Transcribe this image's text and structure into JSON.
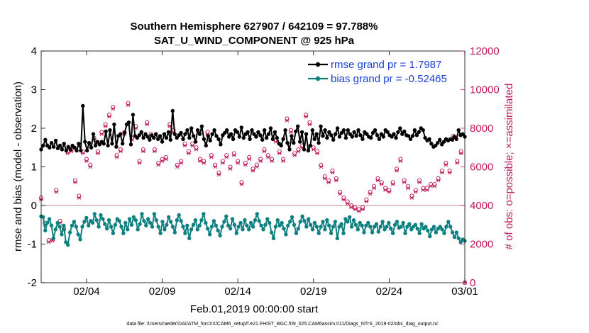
{
  "chart_data": {
    "type": "line",
    "title": "Southern Hemisphere 627907 / 642109 = 97.788%",
    "subtitle": "SAT_U_WIND_COMPONENT @ 925 hPa",
    "xlabel": "Feb.01,2019 00:00:00 start",
    "ylabel": "rmse and bias (model - observation)",
    "ylabel_right": "# of obs: o=possible; ×=assimilated",
    "footnote": "data file: /Users/raeder/DAI/ATM_forcXX/CAM6_setup/f.e21.FHIST_BGC.f09_025.CAM6assim.011/Diags_NTrS_2019-02/obs_diag_output.nc",
    "xlim": [
      0,
      28
    ],
    "ylim": [
      -2,
      4
    ],
    "ylim_right": [
      0,
      12000
    ],
    "xticks": [
      3,
      8,
      13,
      18,
      23,
      28
    ],
    "xtick_labels": [
      "02/04",
      "02/09",
      "02/14",
      "02/19",
      "02/24",
      "03/01"
    ],
    "yticks": [
      -2,
      -1,
      0,
      1,
      2,
      3,
      4
    ],
    "ytick_labels": [
      "-2",
      "-1",
      "0",
      "1",
      "2",
      "3",
      "4"
    ],
    "yticks_right": [
      0,
      2000,
      4000,
      6000,
      8000,
      10000,
      12000
    ],
    "ytick_labels_right": [
      "0",
      "2000",
      "4000",
      "6000",
      "8000",
      "10000",
      "12000"
    ],
    "legend_position": "top-right",
    "colors": {
      "rmse": "#000000",
      "bias": "#0f8080",
      "obs": "#c0185a",
      "zero_line": "#c8a0a0",
      "legend_text": "#1a3fd6"
    },
    "series": [
      {
        "name": "rmse",
        "legend": "rmse grand pr = 1.7987",
        "axis": "left",
        "values": [
          1.45,
          1.55,
          1.7,
          1.55,
          1.5,
          1.62,
          1.52,
          1.68,
          1.48,
          1.55,
          1.45,
          1.6,
          1.42,
          1.52,
          1.45,
          1.55,
          1.5,
          1.42,
          1.6,
          1.42,
          2.58,
          1.65,
          1.42,
          1.62,
          1.5,
          1.85,
          1.55,
          1.65,
          1.58,
          1.65,
          1.6,
          1.92,
          1.55,
          1.95,
          1.6,
          2.1,
          1.52,
          1.8,
          1.85,
          1.6,
          1.88,
          2.1,
          2.15,
          1.58,
          2.35,
          1.8,
          1.75,
          1.82,
          1.9,
          1.75,
          1.85,
          1.78,
          1.7,
          1.82,
          1.75,
          1.85,
          1.72,
          1.8,
          1.65,
          1.85,
          1.75,
          1.9,
          1.7,
          2.45,
          1.85,
          1.75,
          1.82,
          1.88,
          1.72,
          1.85,
          1.95,
          1.75,
          2.0,
          1.8,
          1.65,
          1.95,
          1.85,
          2.05,
          1.72,
          1.55,
          1.8,
          1.68,
          1.85,
          1.95,
          1.8,
          1.72,
          1.58,
          1.82,
          1.88,
          1.95,
          1.78,
          1.85,
          1.72,
          1.95,
          1.9,
          1.78,
          2.02,
          1.75,
          1.85,
          1.9,
          1.72,
          1.95,
          1.85,
          1.78,
          1.9,
          1.82,
          1.7,
          1.95,
          1.75,
          1.85,
          2.0,
          1.72,
          1.9,
          1.75,
          1.6,
          1.55,
          1.72,
          1.95,
          1.62,
          1.45,
          1.8,
          1.62,
          1.92,
          2.05,
          1.65,
          1.9,
          1.45,
          1.85,
          1.42,
          1.55,
          1.95,
          1.72,
          1.85,
          1.62,
          2.05,
          1.8,
          1.95,
          1.75,
          1.9,
          1.82,
          1.7,
          1.85,
          2.0,
          1.78,
          1.88,
          1.95,
          1.75,
          1.95,
          1.85,
          1.78,
          1.9,
          1.8,
          1.95,
          1.82,
          1.72,
          1.9,
          1.85,
          1.78,
          1.75,
          1.88,
          1.95,
          1.82,
          1.72,
          1.85,
          1.78,
          1.95,
          1.9,
          1.82,
          1.78,
          1.85,
          1.75,
          1.9,
          2.0,
          1.85,
          1.92,
          1.82,
          1.8,
          1.72,
          1.8,
          1.95,
          1.82,
          1.9,
          2.0,
          1.95,
          1.75,
          1.68,
          1.72,
          1.6,
          1.52,
          1.55,
          1.62,
          1.7,
          1.58,
          1.65,
          1.72,
          1.68,
          1.72,
          1.7,
          1.78,
          1.72,
          1.95,
          1.82,
          1.85,
          1.78
        ]
      },
      {
        "name": "bias",
        "legend": "bias grand pr = -0.52465",
        "axis": "left",
        "values": [
          -0.28,
          -0.3,
          -0.65,
          -0.45,
          -0.35,
          -0.52,
          -0.85,
          -0.62,
          -0.45,
          -0.55,
          -0.75,
          -0.52,
          -0.95,
          -1.02,
          -0.7,
          -0.52,
          -0.42,
          -0.55,
          -0.75,
          -0.88,
          -0.55,
          -0.42,
          -0.32,
          -0.52,
          -0.4,
          -0.45,
          -0.22,
          -0.38,
          -0.55,
          -0.25,
          -0.35,
          -0.48,
          -0.6,
          -0.38,
          -0.55,
          -0.72,
          -0.5,
          -0.35,
          -0.4,
          -0.55,
          -0.72,
          -0.45,
          -0.62,
          -0.35,
          -0.5,
          -0.3,
          -0.38,
          -0.62,
          -0.48,
          -0.22,
          -0.4,
          -0.52,
          -0.35,
          -0.45,
          -0.55,
          -0.22,
          -0.38,
          -0.55,
          -0.72,
          -0.42,
          -0.62,
          -0.5,
          -0.3,
          -0.42,
          -0.55,
          -0.7,
          -0.38,
          -0.25,
          -0.4,
          -0.55,
          -0.72,
          -0.52,
          -0.85,
          -0.62,
          -0.5,
          -0.38,
          -0.62,
          -0.52,
          -0.38,
          -0.22,
          -0.45,
          -0.6,
          -0.75,
          -0.55,
          -0.4,
          -0.52,
          -0.65,
          -0.78,
          -0.55,
          -0.42,
          -0.28,
          -0.52,
          -0.6,
          -0.35,
          -0.5,
          -0.72,
          -0.55,
          -0.45,
          -0.62,
          -0.38,
          -0.52,
          -0.62,
          -0.45,
          -0.55,
          -0.38,
          -0.22,
          -0.4,
          -0.52,
          -0.62,
          -0.5,
          -0.35,
          -0.45,
          -0.7,
          -0.85,
          -0.55,
          -0.38,
          -0.52,
          -0.45,
          -0.6,
          -0.75,
          -0.52,
          -0.42,
          -0.3,
          -0.5,
          -0.72,
          -0.6,
          -0.42,
          -0.28,
          -0.4,
          -0.55,
          -0.35,
          -0.5,
          -0.62,
          -0.45,
          -0.55,
          -0.72,
          -0.55,
          -0.42,
          -0.62,
          -0.38,
          -0.52,
          -0.72,
          -0.55,
          -0.42,
          -0.85,
          -0.55,
          -0.48,
          -0.72,
          -0.35,
          -0.42,
          -0.3,
          -0.55,
          -0.38,
          -0.5,
          -0.62,
          -0.45,
          -0.52,
          -0.7,
          -0.52,
          -0.45,
          -0.55,
          -0.7,
          -0.55,
          -0.48,
          -0.68,
          -0.55,
          -0.42,
          -0.62,
          -0.55,
          -0.45,
          -0.6,
          -0.72,
          -0.5,
          -0.42,
          -0.58,
          -0.55,
          -0.45,
          -0.72,
          -0.55,
          -0.48,
          -0.62,
          -0.55,
          -0.5,
          -0.6,
          -0.72,
          -0.48,
          -0.6,
          -0.55,
          -0.65,
          -0.8,
          -0.62,
          -0.55,
          -0.7,
          -0.6,
          -0.55,
          -0.62,
          -0.72,
          -0.55,
          -0.42,
          -0.55,
          -0.7,
          -0.82,
          -0.7,
          -0.85,
          -0.95,
          -0.88,
          -0.92
        ]
      }
    ],
    "obs_possible": [
      [
        0,
        4400
      ],
      [
        0.25,
        3100
      ],
      [
        0.5,
        2200
      ],
      [
        0.75,
        2200
      ],
      [
        1.0,
        4800
      ],
      [
        1.25,
        3200
      ],
      [
        1.5,
        2800
      ],
      [
        1.75,
        6800
      ],
      [
        2.0,
        6900
      ],
      [
        2.25,
        5300
      ],
      [
        2.5,
        4500
      ],
      [
        2.75,
        6800
      ],
      [
        3.0,
        6400
      ],
      [
        3.25,
        6100
      ],
      [
        3.5,
        7500
      ],
      [
        3.75,
        6800
      ],
      [
        4.0,
        7800
      ],
      [
        4.25,
        8200
      ],
      [
        4.5,
        8700
      ],
      [
        4.75,
        9100
      ],
      [
        5.0,
        6600
      ],
      [
        5.25,
        6900
      ],
      [
        5.5,
        7800
      ],
      [
        5.75,
        9300
      ],
      [
        6.0,
        7500
      ],
      [
        6.25,
        8100
      ],
      [
        6.5,
        6300
      ],
      [
        6.75,
        6900
      ],
      [
        7.0,
        8300
      ],
      [
        7.25,
        7700
      ],
      [
        7.5,
        6900
      ],
      [
        7.75,
        6200
      ],
      [
        8.0,
        6400
      ],
      [
        8.25,
        6500
      ],
      [
        8.5,
        8200
      ],
      [
        8.75,
        7900
      ],
      [
        9.0,
        6100
      ],
      [
        9.25,
        6300
      ],
      [
        9.5,
        7200
      ],
      [
        9.75,
        6800
      ],
      [
        10.0,
        7200
      ],
      [
        10.25,
        7000
      ],
      [
        10.5,
        6400
      ],
      [
        10.75,
        6300
      ],
      [
        11.0,
        7800
      ],
      [
        11.25,
        6600
      ],
      [
        11.5,
        6100
      ],
      [
        11.75,
        5700
      ],
      [
        12.0,
        6300
      ],
      [
        12.25,
        6600
      ],
      [
        12.5,
        6000
      ],
      [
        12.75,
        6700
      ],
      [
        13.0,
        6300
      ],
      [
        13.25,
        5200
      ],
      [
        13.5,
        6200
      ],
      [
        13.75,
        6500
      ],
      [
        14.0,
        5900
      ],
      [
        14.25,
        6100
      ],
      [
        14.5,
        6400
      ],
      [
        14.75,
        6900
      ],
      [
        15.0,
        6600
      ],
      [
        15.25,
        6400
      ],
      [
        15.5,
        7400
      ],
      [
        15.75,
        6800
      ],
      [
        16.0,
        6400
      ],
      [
        16.25,
        8500
      ],
      [
        16.5,
        7900
      ],
      [
        16.75,
        6700
      ],
      [
        17.0,
        6900
      ],
      [
        17.25,
        7100
      ],
      [
        17.5,
        8700
      ],
      [
        17.75,
        8300
      ],
      [
        18.0,
        7000
      ],
      [
        18.25,
        6800
      ],
      [
        18.5,
        6100
      ],
      [
        18.75,
        5500
      ],
      [
        19.0,
        5300
      ],
      [
        19.25,
        5800
      ],
      [
        19.5,
        5400
      ],
      [
        19.75,
        4700
      ],
      [
        20.0,
        4400
      ],
      [
        20.25,
        4200
      ],
      [
        20.5,
        4000
      ],
      [
        20.75,
        3900
      ],
      [
        21.0,
        3800
      ],
      [
        21.25,
        3900
      ],
      [
        21.5,
        4300
      ],
      [
        21.75,
        4700
      ],
      [
        22.0,
        5000
      ],
      [
        22.25,
        5400
      ],
      [
        22.5,
        5200
      ],
      [
        22.75,
        4900
      ],
      [
        23.0,
        4800
      ],
      [
        23.25,
        5200
      ],
      [
        23.5,
        5900
      ],
      [
        23.75,
        6400
      ],
      [
        24.0,
        5300
      ],
      [
        24.25,
        5000
      ],
      [
        24.5,
        4500
      ],
      [
        24.75,
        4800
      ],
      [
        25.0,
        5300
      ],
      [
        25.25,
        4900
      ],
      [
        25.5,
        4900
      ],
      [
        25.75,
        5100
      ],
      [
        26.0,
        5100
      ],
      [
        26.25,
        5400
      ],
      [
        26.5,
        5800
      ],
      [
        26.75,
        6200
      ],
      [
        27.0,
        5800
      ],
      [
        27.25,
        7600
      ],
      [
        27.5,
        6300
      ],
      [
        27.75,
        6800
      ],
      [
        28.0,
        0
      ]
    ],
    "obs_assimilated": [
      [
        0,
        4300
      ],
      [
        0.25,
        3000
      ],
      [
        0.5,
        2100
      ],
      [
        0.75,
        2200
      ],
      [
        1.0,
        4700
      ],
      [
        1.25,
        3100
      ],
      [
        1.5,
        2700
      ],
      [
        1.75,
        6700
      ],
      [
        2.0,
        6800
      ],
      [
        2.25,
        5200
      ],
      [
        2.5,
        4400
      ],
      [
        2.75,
        6700
      ],
      [
        3.0,
        6300
      ],
      [
        3.25,
        6000
      ],
      [
        3.5,
        7400
      ],
      [
        3.75,
        6700
      ],
      [
        4.0,
        7700
      ],
      [
        4.25,
        8100
      ],
      [
        4.5,
        8600
      ],
      [
        4.75,
        9000
      ],
      [
        5.0,
        6500
      ],
      [
        5.25,
        6800
      ],
      [
        5.5,
        7700
      ],
      [
        5.75,
        9200
      ],
      [
        6.0,
        7400
      ],
      [
        6.25,
        8000
      ],
      [
        6.5,
        6200
      ],
      [
        6.75,
        6800
      ],
      [
        7.0,
        8200
      ],
      [
        7.25,
        7600
      ],
      [
        7.5,
        6800
      ],
      [
        7.75,
        6100
      ],
      [
        8.0,
        6300
      ],
      [
        8.25,
        6400
      ],
      [
        8.5,
        8100
      ],
      [
        8.75,
        7800
      ],
      [
        9.0,
        6000
      ],
      [
        9.25,
        6200
      ],
      [
        9.5,
        7100
      ],
      [
        9.75,
        6700
      ],
      [
        10.0,
        7100
      ],
      [
        10.25,
        6900
      ],
      [
        10.5,
        6300
      ],
      [
        10.75,
        6200
      ],
      [
        11.0,
        7700
      ],
      [
        11.25,
        6500
      ],
      [
        11.5,
        6000
      ],
      [
        11.75,
        5600
      ],
      [
        12.0,
        6200
      ],
      [
        12.25,
        6500
      ],
      [
        12.5,
        5900
      ],
      [
        12.75,
        6600
      ],
      [
        13.0,
        6200
      ],
      [
        13.25,
        5100
      ],
      [
        13.5,
        6100
      ],
      [
        13.75,
        6400
      ],
      [
        14.0,
        5800
      ],
      [
        14.25,
        6000
      ],
      [
        14.5,
        6300
      ],
      [
        14.75,
        6800
      ],
      [
        15.0,
        6500
      ],
      [
        15.25,
        6300
      ],
      [
        15.5,
        7300
      ],
      [
        15.75,
        6700
      ],
      [
        16.0,
        6300
      ],
      [
        16.25,
        8400
      ],
      [
        16.5,
        7800
      ],
      [
        16.75,
        6600
      ],
      [
        17.0,
        6800
      ],
      [
        17.25,
        7000
      ],
      [
        17.5,
        8600
      ],
      [
        17.75,
        8200
      ],
      [
        18.0,
        6900
      ],
      [
        18.25,
        6700
      ],
      [
        18.5,
        6000
      ],
      [
        18.75,
        5400
      ],
      [
        19.0,
        5200
      ],
      [
        19.25,
        5700
      ],
      [
        19.5,
        5300
      ],
      [
        19.75,
        4600
      ],
      [
        20.0,
        4300
      ],
      [
        20.25,
        4100
      ],
      [
        20.5,
        3900
      ],
      [
        20.75,
        3800
      ],
      [
        21.0,
        3700
      ],
      [
        21.25,
        3800
      ],
      [
        21.5,
        4200
      ],
      [
        21.75,
        4600
      ],
      [
        22.0,
        4900
      ],
      [
        22.25,
        5300
      ],
      [
        22.5,
        5100
      ],
      [
        22.75,
        4800
      ],
      [
        23.0,
        4700
      ],
      [
        23.25,
        5100
      ],
      [
        23.5,
        5800
      ],
      [
        23.75,
        6300
      ],
      [
        24.0,
        5200
      ],
      [
        24.25,
        4900
      ],
      [
        24.5,
        4400
      ],
      [
        24.75,
        4700
      ],
      [
        25.0,
        5200
      ],
      [
        25.25,
        4800
      ],
      [
        25.5,
        4800
      ],
      [
        25.75,
        5000
      ],
      [
        26.0,
        5000
      ],
      [
        26.25,
        5300
      ],
      [
        26.5,
        5700
      ],
      [
        26.75,
        6100
      ],
      [
        27.0,
        5700
      ],
      [
        27.25,
        7500
      ],
      [
        27.5,
        6200
      ],
      [
        27.75,
        6700
      ],
      [
        28.0,
        0
      ]
    ]
  }
}
